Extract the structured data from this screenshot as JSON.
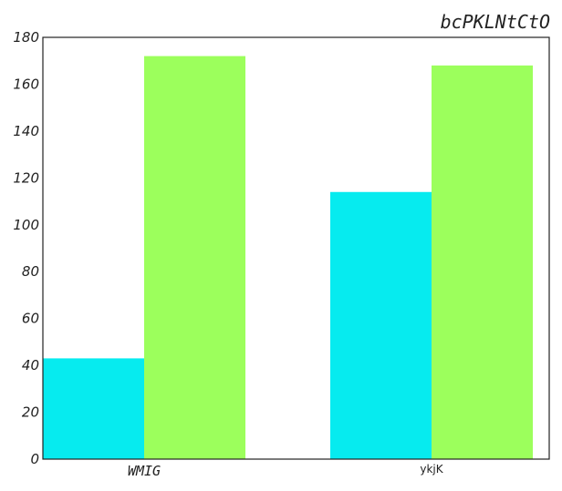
{
  "chart_data": {
    "type": "bar",
    "title": "bcPKLNtCtO",
    "xlabel": "",
    "ylabel": "",
    "categories": [
      "WMIG",
      "ykjK"
    ],
    "series": [
      {
        "values": [
          43,
          114
        ],
        "color": "#06ebef"
      },
      {
        "values": [
          172,
          168
        ],
        "color": "#9cff5c"
      }
    ],
    "ylim": [
      0,
      180
    ],
    "yticks": [
      "0",
      "20",
      "40",
      "60",
      "80",
      "100",
      "120",
      "140",
      "160",
      "180"
    ],
    "grid": false,
    "legend": "none"
  }
}
